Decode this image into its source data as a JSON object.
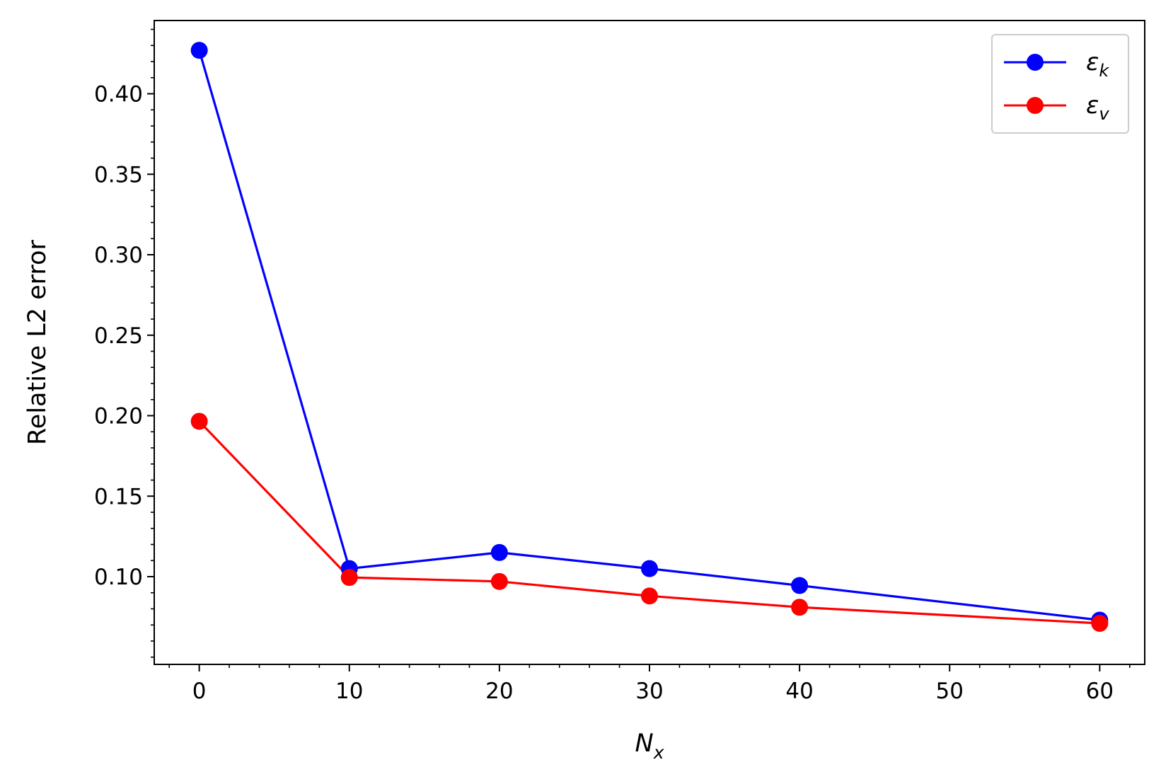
{
  "chart_data": {
    "type": "line",
    "x": [
      0,
      10,
      20,
      30,
      40,
      60
    ],
    "series": [
      {
        "name": "ε",
        "subscript": "k",
        "color": "#0000ff",
        "marker": "circle",
        "values": [
          0.427,
          0.105,
          0.115,
          0.105,
          0.0945,
          0.073
        ]
      },
      {
        "name": "ε",
        "subscript": "v",
        "color": "#ff0000",
        "marker": "circle",
        "values": [
          0.1965,
          0.0995,
          0.097,
          0.088,
          0.081,
          0.071
        ]
      }
    ],
    "xlabel": {
      "main": "N",
      "sub": "x"
    },
    "ylabel": "Relative L2 error",
    "xlim": [
      -3,
      63
    ],
    "ylim": [
      0.0455,
      0.4455
    ],
    "xticks": [
      0,
      10,
      20,
      30,
      40,
      50,
      60
    ],
    "xtick_labels": [
      "0",
      "10",
      "20",
      "30",
      "40",
      "50",
      "60"
    ],
    "yticks": [
      0.1,
      0.15,
      0.2,
      0.25,
      0.3,
      0.35,
      0.4
    ],
    "ytick_labels": [
      "0.10",
      "0.15",
      "0.20",
      "0.25",
      "0.30",
      "0.35",
      "0.40"
    ],
    "x_minor_step": 2,
    "y_minor_step": 0.01,
    "grid": false,
    "legend_position": "top-right"
  }
}
